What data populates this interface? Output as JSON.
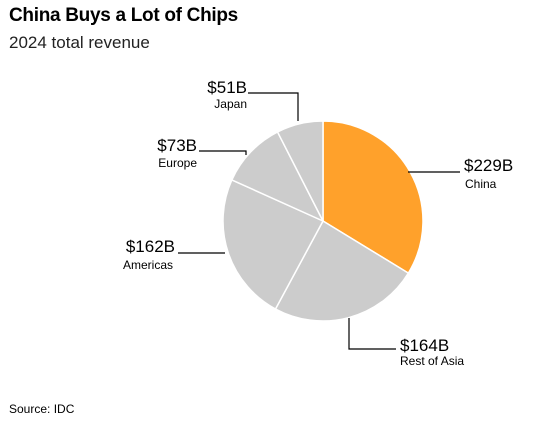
{
  "header": {
    "title": "China Buys a Lot of Chips",
    "subtitle": "2024 total revenue"
  },
  "footer": {
    "source": "Source: IDC"
  },
  "chart_data": {
    "type": "pie",
    "title": "China Buys a Lot of Chips",
    "subtitle": "2024 total revenue",
    "unit": "USD billions",
    "start": "12 o'clock, clockwise",
    "slices": [
      {
        "name": "China",
        "value": 229,
        "label": "$229B",
        "color": "#FFA12B"
      },
      {
        "name": "Rest of Asia",
        "value": 164,
        "label": "$164B",
        "color": "#CCCCCC"
      },
      {
        "name": "Americas",
        "value": 162,
        "label": "$162B",
        "color": "#CCCCCC"
      },
      {
        "name": "Europe",
        "value": 73,
        "label": "$73B",
        "color": "#CCCCCC"
      },
      {
        "name": "Japan",
        "value": 51,
        "label": "$51B",
        "color": "#CCCCCC"
      }
    ],
    "slice_border_color": "#FFFFFF",
    "leader_color": "#000000"
  }
}
